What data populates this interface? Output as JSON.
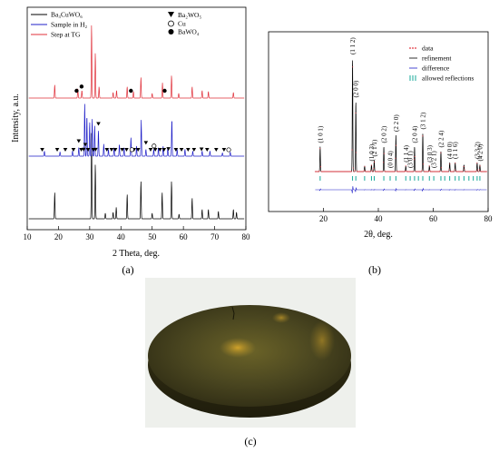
{
  "chart_data": [
    {
      "panel": "a",
      "type": "line",
      "xlabel": "2 Theta, deg.",
      "ylabel": "Intensity, a.u.",
      "xlim": [
        10,
        80
      ],
      "xticks": [
        10,
        20,
        30,
        40,
        50,
        60,
        70,
        80
      ],
      "legend": [
        {
          "name": "Ba₃CuWO₆",
          "color": "#000000"
        },
        {
          "name": "Sample in H₂",
          "color": "#1f1fc8"
        },
        {
          "name": "Step at TG",
          "color": "#e0303a"
        }
      ],
      "phase_legend": [
        {
          "marker": "triangle-down",
          "name": "Ba₂WO₅"
        },
        {
          "marker": "open-circle",
          "name": "Cu"
        },
        {
          "marker": "filled-circle",
          "name": "BaWO₄"
        }
      ],
      "series": [
        {
          "name": "Ba₃CuWO₆",
          "color": "#000000",
          "peaks": [
            [
              18.8,
              0.28
            ],
            [
              30.6,
              0.92
            ],
            [
              31.8,
              0.58
            ],
            [
              35.0,
              0.06
            ],
            [
              37.5,
              0.07
            ],
            [
              38.5,
              0.12
            ],
            [
              42.0,
              0.26
            ],
            [
              46.4,
              0.4
            ],
            [
              50.0,
              0.06
            ],
            [
              53.2,
              0.28
            ],
            [
              56.2,
              0.4
            ],
            [
              58.6,
              0.05
            ],
            [
              62.8,
              0.22
            ],
            [
              66.0,
              0.1
            ],
            [
              68.0,
              0.1
            ],
            [
              71.2,
              0.08
            ],
            [
              76.0,
              0.1
            ],
            [
              77.0,
              0.07
            ]
          ]
        },
        {
          "name": "Sample in H₂",
          "color": "#1f1fc8",
          "peaks": [
            [
              15.5,
              0.06
            ],
            [
              20.5,
              0.05
            ],
            [
              24.5,
              0.06
            ],
            [
              26.5,
              0.1
            ],
            [
              28.4,
              0.62
            ],
            [
              29.1,
              0.48
            ],
            [
              30.0,
              0.4
            ],
            [
              30.8,
              0.44
            ],
            [
              31.6,
              0.36
            ],
            [
              32.8,
              0.3
            ],
            [
              34.5,
              0.14
            ],
            [
              36.0,
              0.08
            ],
            [
              37.8,
              0.1
            ],
            [
              39.5,
              0.14
            ],
            [
              41.0,
              0.1
            ],
            [
              43.2,
              0.22
            ],
            [
              45.0,
              0.12
            ],
            [
              46.5,
              0.42
            ],
            [
              48.0,
              0.08
            ],
            [
              50.5,
              0.08
            ],
            [
              52.0,
              0.1
            ],
            [
              53.5,
              0.12
            ],
            [
              55.0,
              0.1
            ],
            [
              56.3,
              0.44
            ],
            [
              58.0,
              0.08
            ],
            [
              60.5,
              0.08
            ],
            [
              63.0,
              0.06
            ],
            [
              66.0,
              0.06
            ],
            [
              68.5,
              0.06
            ],
            [
              72.5,
              0.04
            ],
            [
              75.0,
              0.05
            ]
          ]
        },
        {
          "name": "Step at TG",
          "color": "#e0303a",
          "peaks": [
            [
              18.8,
              0.14
            ],
            [
              26.2,
              0.1
            ],
            [
              27.5,
              0.08
            ],
            [
              30.6,
              0.78
            ],
            [
              31.8,
              0.48
            ],
            [
              33.0,
              0.12
            ],
            [
              37.5,
              0.06
            ],
            [
              38.6,
              0.08
            ],
            [
              42.0,
              0.12
            ],
            [
              44.0,
              0.07
            ],
            [
              46.4,
              0.22
            ],
            [
              50.0,
              0.05
            ],
            [
              53.3,
              0.16
            ],
            [
              56.2,
              0.24
            ],
            [
              58.5,
              0.05
            ],
            [
              62.8,
              0.12
            ],
            [
              66.0,
              0.08
            ],
            [
              68.0,
              0.07
            ],
            [
              76.0,
              0.06
            ]
          ]
        }
      ],
      "phase_marks": {
        "filled-circle": [
          25.8,
          27.4,
          43.2,
          54.0
        ],
        "triangle-down": [
          14.8,
          19.6,
          22.2,
          24.8,
          26.5,
          27.3,
          28.1,
          28.6,
          29.5,
          31.2,
          31.9,
          32.8,
          35.5,
          37.0,
          38.2,
          40.4,
          41.8,
          44.2,
          45.5,
          48.0,
          49.5,
          51.0,
          52.5,
          53.8,
          55.2,
          57.6,
          59.4,
          61.5,
          63.4,
          65.8,
          67.6,
          70.5,
          73.0
        ],
        "open-circle": [
          43.5,
          50.6,
          74.5
        ]
      }
    },
    {
      "panel": "b",
      "type": "line",
      "xlabel": "2θ, deg.",
      "xlim": [
        0,
        80
      ],
      "xticks": [
        20,
        40,
        60,
        80
      ],
      "legend": [
        {
          "name": "data",
          "style": "red-dots",
          "color": "#e0303a"
        },
        {
          "name": "refinement",
          "style": "black-line",
          "color": "#000000"
        },
        {
          "name": "difference",
          "style": "blue-line",
          "color": "#1f1fc8"
        },
        {
          "name": "allowed reflections",
          "style": "green-ticks",
          "color": "#17a89a"
        }
      ],
      "peaks": [
        [
          18.8,
          0.22
        ],
        [
          30.6,
          1.0
        ],
        [
          31.8,
          0.62
        ],
        [
          35.0,
          0.05
        ],
        [
          37.5,
          0.06
        ],
        [
          38.5,
          0.1
        ],
        [
          42.0,
          0.22
        ],
        [
          46.4,
          0.32
        ],
        [
          50.0,
          0.05
        ],
        [
          53.2,
          0.22
        ],
        [
          56.2,
          0.34
        ],
        [
          58.6,
          0.05
        ],
        [
          62.8,
          0.18
        ],
        [
          66.0,
          0.08
        ],
        [
          68.0,
          0.08
        ],
        [
          71.2,
          0.06
        ],
        [
          76.0,
          0.08
        ],
        [
          77.0,
          0.06
        ]
      ],
      "reflections": [
        18.8,
        30.6,
        31.8,
        35.0,
        37.5,
        38.5,
        42.0,
        44.3,
        46.4,
        50.0,
        51.6,
        53.2,
        54.6,
        56.2,
        58.6,
        60.2,
        62.8,
        64.2,
        66.0,
        68.0,
        69.4,
        71.2,
        73.0,
        74.6,
        76.0,
        77.0
      ],
      "hkl_labels": [
        "(1 0 1)",
        "(1 1 2)",
        "(2 0 0)",
        "(1 0 3)",
        "(2 1 1)",
        "(2 0 2)",
        "(0 0 4)",
        "(2 2 0)",
        "(1 1 4)",
        "(3 0 1)",
        "(2 0 4)",
        "(3 1 2)",
        "(3 0 3)",
        "(3 2 1)",
        "(2 2 4)",
        "(4 0 0)",
        "(1 1 6)",
        "(3 3 2)",
        "(4 2 0)"
      ]
    }
  ],
  "panel_labels": {
    "a": "(a)",
    "b": "(b)",
    "c": "(c)"
  },
  "photo": {
    "subject": "pellet-photo"
  }
}
